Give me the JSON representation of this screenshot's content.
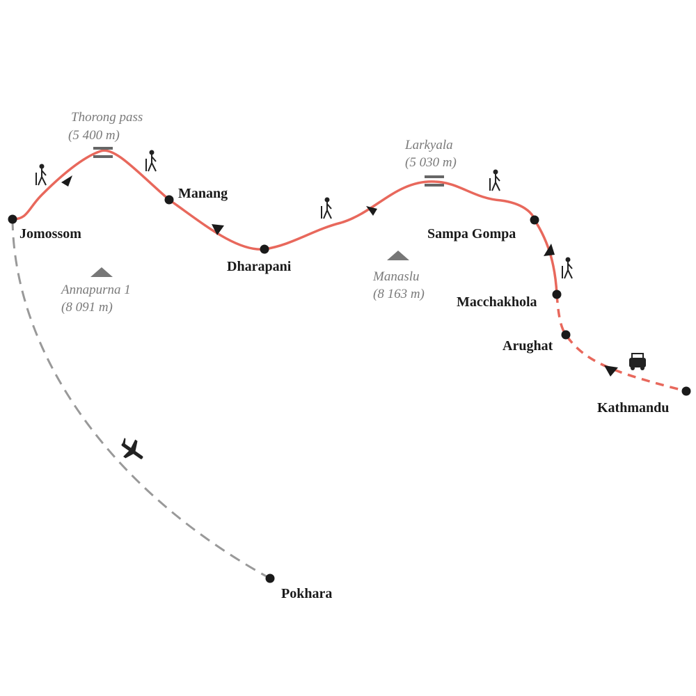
{
  "places": [
    {
      "label": "Jomossom"
    },
    {
      "label": "Manang"
    },
    {
      "label": "Dharapani"
    },
    {
      "label": "Sampa Gompa"
    },
    {
      "label": "Macchakhola"
    },
    {
      "label": "Arughat"
    },
    {
      "label": "Kathmandu"
    },
    {
      "label": "Pokhara"
    }
  ],
  "passes": [
    {
      "name": "Thorong pass",
      "altitude": "(5 400 m)"
    },
    {
      "name": "Larkyala",
      "altitude": "(5 030 m)"
    }
  ],
  "peaks": [
    {
      "name": "Annapurna 1",
      "altitude": "(8 091 m)"
    },
    {
      "name": "Manaslu",
      "altitude": "(8 163 m)"
    }
  ]
}
